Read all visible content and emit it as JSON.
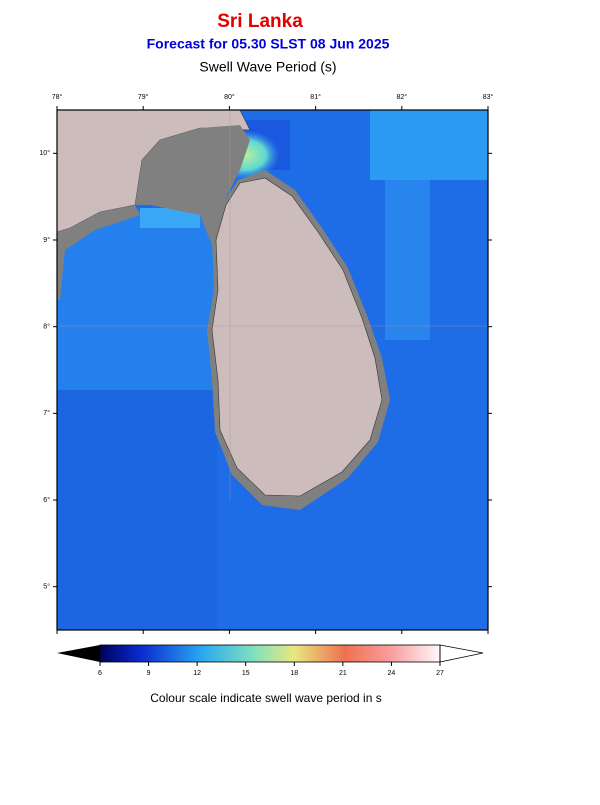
{
  "header": {
    "title": "Sri Lanka",
    "subtitle": "Forecast for  05.30 SLST 08 Jun 2025",
    "variable": "Swell Wave Period (s)"
  },
  "map": {
    "lon_range": [
      78,
      83
    ],
    "lat_range": [
      4.5,
      10.5
    ],
    "lon_ticks": [
      {
        "value": 78,
        "label": "78°"
      },
      {
        "value": 79,
        "label": "79°"
      },
      {
        "value": 80,
        "label": "80°"
      },
      {
        "value": 81,
        "label": "81°"
      },
      {
        "value": 82,
        "label": "82°"
      },
      {
        "value": 83,
        "label": "83°"
      }
    ],
    "lat_ticks": [
      {
        "value": 5,
        "label": "5°"
      },
      {
        "value": 6,
        "label": "6°"
      },
      {
        "value": 7,
        "label": "7°"
      },
      {
        "value": 8,
        "label": "8°"
      },
      {
        "value": 9,
        "label": "9°"
      },
      {
        "value": 10,
        "label": "10°"
      }
    ]
  },
  "colorbar": {
    "ticks": [
      6,
      9,
      12,
      15,
      18,
      21,
      24,
      27
    ],
    "caption": "Colour scale indicate swell wave period in s"
  }
}
